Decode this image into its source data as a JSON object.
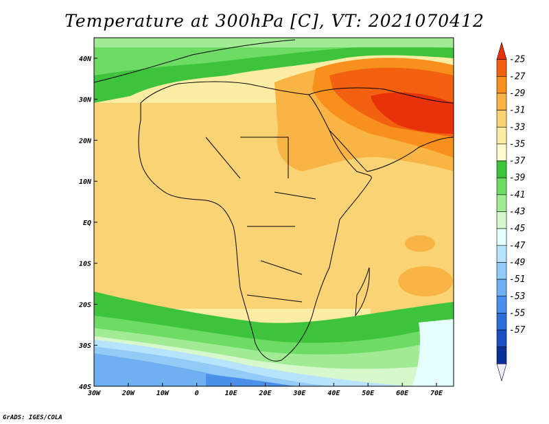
{
  "title": "Temperature at 300hPa [C], VT: 2021070412",
  "credit": "GrADS: IGES/COLA",
  "map": {
    "lon_range": [
      -30,
      75
    ],
    "lat_range": [
      -40,
      45
    ],
    "lon_ticks": [
      {
        "value": -30,
        "label": "30W"
      },
      {
        "value": -20,
        "label": "20W"
      },
      {
        "value": -10,
        "label": "10W"
      },
      {
        "value": 0,
        "label": "0"
      },
      {
        "value": 10,
        "label": "10E"
      },
      {
        "value": 20,
        "label": "20E"
      },
      {
        "value": 30,
        "label": "30E"
      },
      {
        "value": 40,
        "label": "40E"
      },
      {
        "value": 50,
        "label": "50E"
      },
      {
        "value": 60,
        "label": "60E"
      },
      {
        "value": 70,
        "label": "70E"
      }
    ],
    "lat_ticks": [
      {
        "value": 40,
        "label": "40N"
      },
      {
        "value": 30,
        "label": "30N"
      },
      {
        "value": 20,
        "label": "20N"
      },
      {
        "value": 10,
        "label": "10N"
      },
      {
        "value": 0,
        "label": "EQ"
      },
      {
        "value": -10,
        "label": "10S"
      },
      {
        "value": -20,
        "label": "20S"
      },
      {
        "value": -30,
        "label": "30S"
      },
      {
        "value": -40,
        "label": "40S"
      }
    ]
  },
  "colorbar": {
    "labels": [
      "-25",
      "-27",
      "-29",
      "-31",
      "-33",
      "-35",
      "-37",
      "-39",
      "-41",
      "-43",
      "-45",
      "-47",
      "-49",
      "-51",
      "-53",
      "-55",
      "-57"
    ],
    "colors": [
      "#e8320a",
      "#f26010",
      "#f7901c",
      "#f8b445",
      "#fad375",
      "#fdeca4",
      "#fffbd0",
      "#3ec43c",
      "#6ddb64",
      "#a1eb95",
      "#d6f8cc",
      "#e6ffff",
      "#b8e3fc",
      "#93cbf7",
      "#6fb0f2",
      "#4a90ea",
      "#2d6fd9",
      "#1a4fc4",
      "#0a2e98",
      "#f0ecff"
    ]
  },
  "legend_colors": {
    "land": "#fad375",
    "ocean": "#fdeca4",
    "hot": "#e8320a",
    "warm": "#f7901c",
    "green": "#3ec43c",
    "blue": "#6fb0f2"
  }
}
